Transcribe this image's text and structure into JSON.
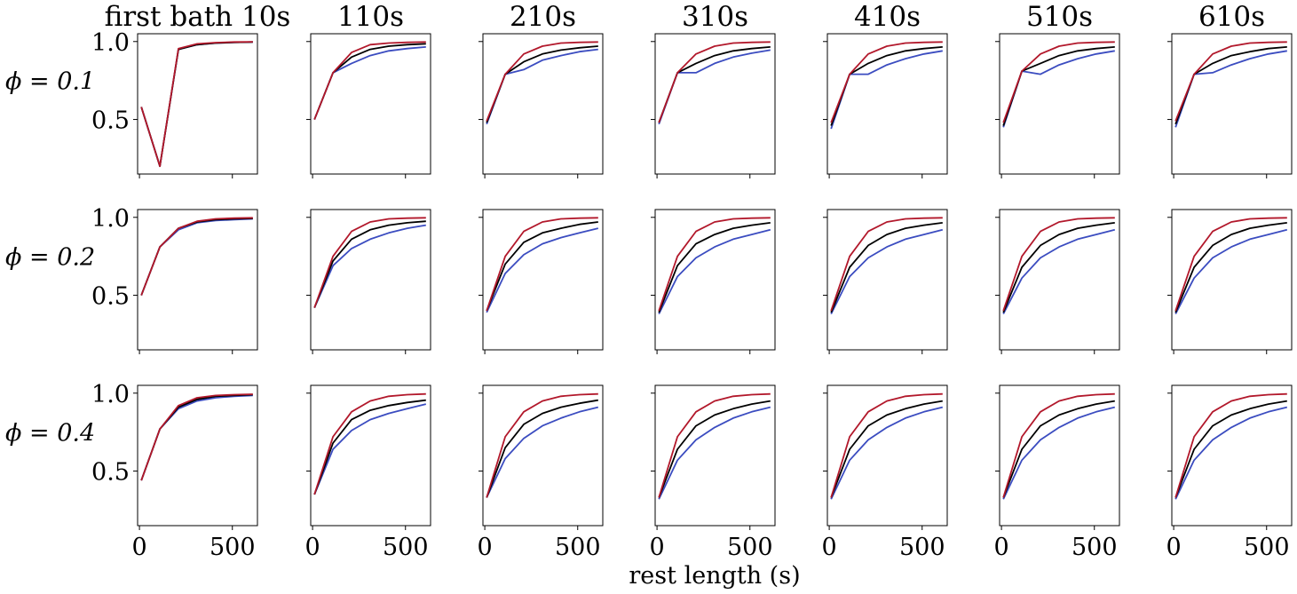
{
  "figure": {
    "xlabel": "rest length (s)",
    "column_titles": [
      "first bath 10s",
      "110s",
      "210s",
      "310s",
      "410s",
      "510s",
      "610s"
    ],
    "row_labels": [
      "ϕ = 0.1",
      "ϕ = 0.2",
      "ϕ = 0.4"
    ]
  },
  "chart_data": {
    "type": "line",
    "layout": "grid of 3 rows x 7 columns, shared axes",
    "xlabel": "rest length (s)",
    "xlim": [
      -10,
      635
    ],
    "xticks": [
      0,
      500
    ],
    "ylim": [
      0.15,
      1.05
    ],
    "yticks": [
      0.5,
      1.0
    ],
    "ytick_labels": [
      "0.5",
      "1.0"
    ],
    "grid": false,
    "legend": "none",
    "x": [
      10,
      110,
      210,
      310,
      410,
      510,
      610
    ],
    "series_colors": [
      "#b2182b",
      "#000000",
      "#3b4cc0"
    ],
    "panels": [
      {
        "row": "ϕ = 0.1",
        "col": "first bath 10s",
        "series": [
          {
            "color": "#3b4cc0",
            "values": [
              0.58,
              0.2,
              0.95,
              0.98,
              0.99,
              0.995,
              0.997
            ]
          },
          {
            "color": "#000000",
            "values": [
              0.58,
              0.2,
              0.95,
              0.98,
              0.99,
              0.995,
              0.997
            ]
          },
          {
            "color": "#b2182b",
            "values": [
              0.58,
              0.2,
              0.955,
              0.985,
              0.993,
              0.997,
              0.998
            ]
          }
        ]
      },
      {
        "row": "ϕ = 0.1",
        "col": "110s",
        "series": [
          {
            "color": "#3b4cc0",
            "values": [
              0.5,
              0.8,
              0.86,
              0.91,
              0.94,
              0.955,
              0.965
            ]
          },
          {
            "color": "#000000",
            "values": [
              0.5,
              0.8,
              0.9,
              0.95,
              0.97,
              0.98,
              0.985
            ]
          },
          {
            "color": "#b2182b",
            "values": [
              0.5,
              0.8,
              0.93,
              0.98,
              0.99,
              0.995,
              0.997
            ]
          }
        ]
      },
      {
        "row": "ϕ = 0.1",
        "col": "210s",
        "series": [
          {
            "color": "#3b4cc0",
            "values": [
              0.47,
              0.79,
              0.82,
              0.88,
              0.91,
              0.935,
              0.95
            ]
          },
          {
            "color": "#000000",
            "values": [
              0.48,
              0.79,
              0.87,
              0.92,
              0.945,
              0.96,
              0.97
            ]
          },
          {
            "color": "#b2182b",
            "values": [
              0.49,
              0.79,
              0.92,
              0.97,
              0.99,
              0.995,
              0.997
            ]
          }
        ]
      },
      {
        "row": "ϕ = 0.1",
        "col": "310s",
        "series": [
          {
            "color": "#3b4cc0",
            "values": [
              0.47,
              0.8,
              0.8,
              0.86,
              0.9,
              0.925,
              0.945
            ]
          },
          {
            "color": "#000000",
            "values": [
              0.48,
              0.8,
              0.86,
              0.91,
              0.94,
              0.955,
              0.965
            ]
          },
          {
            "color": "#b2182b",
            "values": [
              0.48,
              0.8,
              0.92,
              0.97,
              0.99,
              0.995,
              0.997
            ]
          }
        ]
      },
      {
        "row": "ϕ = 0.1",
        "col": "410s",
        "series": [
          {
            "color": "#3b4cc0",
            "values": [
              0.44,
              0.79,
              0.79,
              0.85,
              0.89,
              0.92,
              0.94
            ]
          },
          {
            "color": "#000000",
            "values": [
              0.46,
              0.79,
              0.86,
              0.91,
              0.94,
              0.955,
              0.965
            ]
          },
          {
            "color": "#b2182b",
            "values": [
              0.48,
              0.79,
              0.92,
              0.97,
              0.99,
              0.995,
              0.997
            ]
          }
        ]
      },
      {
        "row": "ϕ = 0.1",
        "col": "510s",
        "series": [
          {
            "color": "#3b4cc0",
            "values": [
              0.45,
              0.81,
              0.79,
              0.85,
              0.89,
              0.92,
              0.94
            ]
          },
          {
            "color": "#000000",
            "values": [
              0.46,
              0.81,
              0.86,
              0.91,
              0.94,
              0.955,
              0.965
            ]
          },
          {
            "color": "#b2182b",
            "values": [
              0.48,
              0.81,
              0.92,
              0.97,
              0.99,
              0.995,
              0.997
            ]
          }
        ]
      },
      {
        "row": "ϕ = 0.1",
        "col": "610s",
        "series": [
          {
            "color": "#3b4cc0",
            "values": [
              0.45,
              0.79,
              0.8,
              0.85,
              0.89,
              0.92,
              0.94
            ]
          },
          {
            "color": "#000000",
            "values": [
              0.47,
              0.79,
              0.86,
              0.91,
              0.935,
              0.955,
              0.965
            ]
          },
          {
            "color": "#b2182b",
            "values": [
              0.49,
              0.79,
              0.92,
              0.97,
              0.99,
              0.995,
              0.997
            ]
          }
        ]
      },
      {
        "row": "ϕ = 0.2",
        "col": "first bath 10s",
        "series": [
          {
            "color": "#3b4cc0",
            "values": [
              0.5,
              0.81,
              0.92,
              0.965,
              0.98,
              0.985,
              0.99
            ]
          },
          {
            "color": "#000000",
            "values": [
              0.5,
              0.81,
              0.93,
              0.97,
              0.985,
              0.99,
              0.993
            ]
          },
          {
            "color": "#b2182b",
            "values": [
              0.5,
              0.81,
              0.93,
              0.975,
              0.99,
              0.995,
              0.997
            ]
          }
        ]
      },
      {
        "row": "ϕ = 0.2",
        "col": "110s",
        "series": [
          {
            "color": "#3b4cc0",
            "values": [
              0.42,
              0.69,
              0.8,
              0.86,
              0.9,
              0.93,
              0.95
            ]
          },
          {
            "color": "#000000",
            "values": [
              0.42,
              0.72,
              0.86,
              0.92,
              0.95,
              0.965,
              0.975
            ]
          },
          {
            "color": "#b2182b",
            "values": [
              0.42,
              0.75,
              0.91,
              0.97,
              0.99,
              0.995,
              0.997
            ]
          }
        ]
      },
      {
        "row": "ϕ = 0.2",
        "col": "210s",
        "series": [
          {
            "color": "#3b4cc0",
            "values": [
              0.39,
              0.64,
              0.76,
              0.83,
              0.87,
              0.9,
              0.93
            ]
          },
          {
            "color": "#000000",
            "values": [
              0.4,
              0.7,
              0.84,
              0.9,
              0.93,
              0.955,
              0.97
            ]
          },
          {
            "color": "#b2182b",
            "values": [
              0.4,
              0.75,
              0.91,
              0.97,
              0.99,
              0.995,
              0.997
            ]
          }
        ]
      },
      {
        "row": "ϕ = 0.2",
        "col": "310s",
        "series": [
          {
            "color": "#3b4cc0",
            "values": [
              0.38,
              0.62,
              0.74,
              0.81,
              0.86,
              0.89,
              0.92
            ]
          },
          {
            "color": "#000000",
            "values": [
              0.39,
              0.69,
              0.83,
              0.89,
              0.93,
              0.95,
              0.965
            ]
          },
          {
            "color": "#b2182b",
            "values": [
              0.4,
              0.75,
              0.91,
              0.97,
              0.99,
              0.995,
              0.997
            ]
          }
        ]
      },
      {
        "row": "ϕ = 0.2",
        "col": "410s",
        "series": [
          {
            "color": "#3b4cc0",
            "values": [
              0.38,
              0.62,
              0.74,
              0.81,
              0.86,
              0.89,
              0.92
            ]
          },
          {
            "color": "#000000",
            "values": [
              0.39,
              0.68,
              0.82,
              0.89,
              0.93,
              0.95,
              0.965
            ]
          },
          {
            "color": "#b2182b",
            "values": [
              0.4,
              0.75,
              0.91,
              0.97,
              0.99,
              0.995,
              0.997
            ]
          }
        ]
      },
      {
        "row": "ϕ = 0.2",
        "col": "510s",
        "series": [
          {
            "color": "#3b4cc0",
            "values": [
              0.38,
              0.61,
              0.74,
              0.81,
              0.86,
              0.89,
              0.92
            ]
          },
          {
            "color": "#000000",
            "values": [
              0.39,
              0.68,
              0.82,
              0.89,
              0.93,
              0.95,
              0.965
            ]
          },
          {
            "color": "#b2182b",
            "values": [
              0.4,
              0.75,
              0.91,
              0.97,
              0.99,
              0.995,
              0.997
            ]
          }
        ]
      },
      {
        "row": "ϕ = 0.2",
        "col": "610s",
        "series": [
          {
            "color": "#3b4cc0",
            "values": [
              0.38,
              0.61,
              0.74,
              0.81,
              0.86,
              0.89,
              0.92
            ]
          },
          {
            "color": "#000000",
            "values": [
              0.39,
              0.68,
              0.82,
              0.89,
              0.93,
              0.95,
              0.965
            ]
          },
          {
            "color": "#b2182b",
            "values": [
              0.4,
              0.75,
              0.91,
              0.97,
              0.99,
              0.995,
              0.997
            ]
          }
        ]
      },
      {
        "row": "ϕ = 0.4",
        "col": "first bath 10s",
        "series": [
          {
            "color": "#3b4cc0",
            "values": [
              0.44,
              0.77,
              0.9,
              0.95,
              0.97,
              0.98,
              0.985
            ]
          },
          {
            "color": "#000000",
            "values": [
              0.44,
              0.77,
              0.91,
              0.96,
              0.98,
              0.985,
              0.99
            ]
          },
          {
            "color": "#b2182b",
            "values": [
              0.44,
              0.77,
              0.92,
              0.97,
              0.985,
              0.99,
              0.993
            ]
          }
        ]
      },
      {
        "row": "ϕ = 0.4",
        "col": "110s",
        "series": [
          {
            "color": "#3b4cc0",
            "values": [
              0.35,
              0.64,
              0.76,
              0.83,
              0.87,
              0.9,
              0.93
            ]
          },
          {
            "color": "#000000",
            "values": [
              0.35,
              0.68,
              0.83,
              0.89,
              0.92,
              0.94,
              0.955
            ]
          },
          {
            "color": "#b2182b",
            "values": [
              0.35,
              0.72,
              0.88,
              0.95,
              0.98,
              0.99,
              0.995
            ]
          }
        ]
      },
      {
        "row": "ϕ = 0.4",
        "col": "210s",
        "series": [
          {
            "color": "#3b4cc0",
            "values": [
              0.33,
              0.58,
              0.71,
              0.79,
              0.84,
              0.88,
              0.91
            ]
          },
          {
            "color": "#000000",
            "values": [
              0.33,
              0.65,
              0.8,
              0.87,
              0.91,
              0.935,
              0.955
            ]
          },
          {
            "color": "#b2182b",
            "values": [
              0.33,
              0.72,
              0.88,
              0.95,
              0.98,
              0.99,
              0.995
            ]
          }
        ]
      },
      {
        "row": "ϕ = 0.4",
        "col": "310s",
        "series": [
          {
            "color": "#3b4cc0",
            "values": [
              0.32,
              0.57,
              0.7,
              0.78,
              0.84,
              0.88,
              0.91
            ]
          },
          {
            "color": "#000000",
            "values": [
              0.33,
              0.64,
              0.79,
              0.86,
              0.9,
              0.93,
              0.95
            ]
          },
          {
            "color": "#b2182b",
            "values": [
              0.33,
              0.72,
              0.88,
              0.95,
              0.98,
              0.99,
              0.995
            ]
          }
        ]
      },
      {
        "row": "ϕ = 0.4",
        "col": "410s",
        "series": [
          {
            "color": "#3b4cc0",
            "values": [
              0.32,
              0.57,
              0.7,
              0.78,
              0.84,
              0.88,
              0.91
            ]
          },
          {
            "color": "#000000",
            "values": [
              0.33,
              0.64,
              0.79,
              0.86,
              0.9,
              0.93,
              0.95
            ]
          },
          {
            "color": "#b2182b",
            "values": [
              0.33,
              0.72,
              0.88,
              0.95,
              0.98,
              0.99,
              0.995
            ]
          }
        ]
      },
      {
        "row": "ϕ = 0.4",
        "col": "510s",
        "series": [
          {
            "color": "#3b4cc0",
            "values": [
              0.32,
              0.57,
              0.7,
              0.78,
              0.84,
              0.88,
              0.91
            ]
          },
          {
            "color": "#000000",
            "values": [
              0.33,
              0.64,
              0.79,
              0.86,
              0.9,
              0.93,
              0.95
            ]
          },
          {
            "color": "#b2182b",
            "values": [
              0.33,
              0.72,
              0.88,
              0.95,
              0.98,
              0.99,
              0.995
            ]
          }
        ]
      },
      {
        "row": "ϕ = 0.4",
        "col": "610s",
        "series": [
          {
            "color": "#3b4cc0",
            "values": [
              0.32,
              0.57,
              0.7,
              0.78,
              0.84,
              0.88,
              0.91
            ]
          },
          {
            "color": "#000000",
            "values": [
              0.33,
              0.64,
              0.79,
              0.86,
              0.9,
              0.93,
              0.95
            ]
          },
          {
            "color": "#b2182b",
            "values": [
              0.33,
              0.72,
              0.88,
              0.95,
              0.98,
              0.99,
              0.995
            ]
          }
        ]
      }
    ]
  }
}
